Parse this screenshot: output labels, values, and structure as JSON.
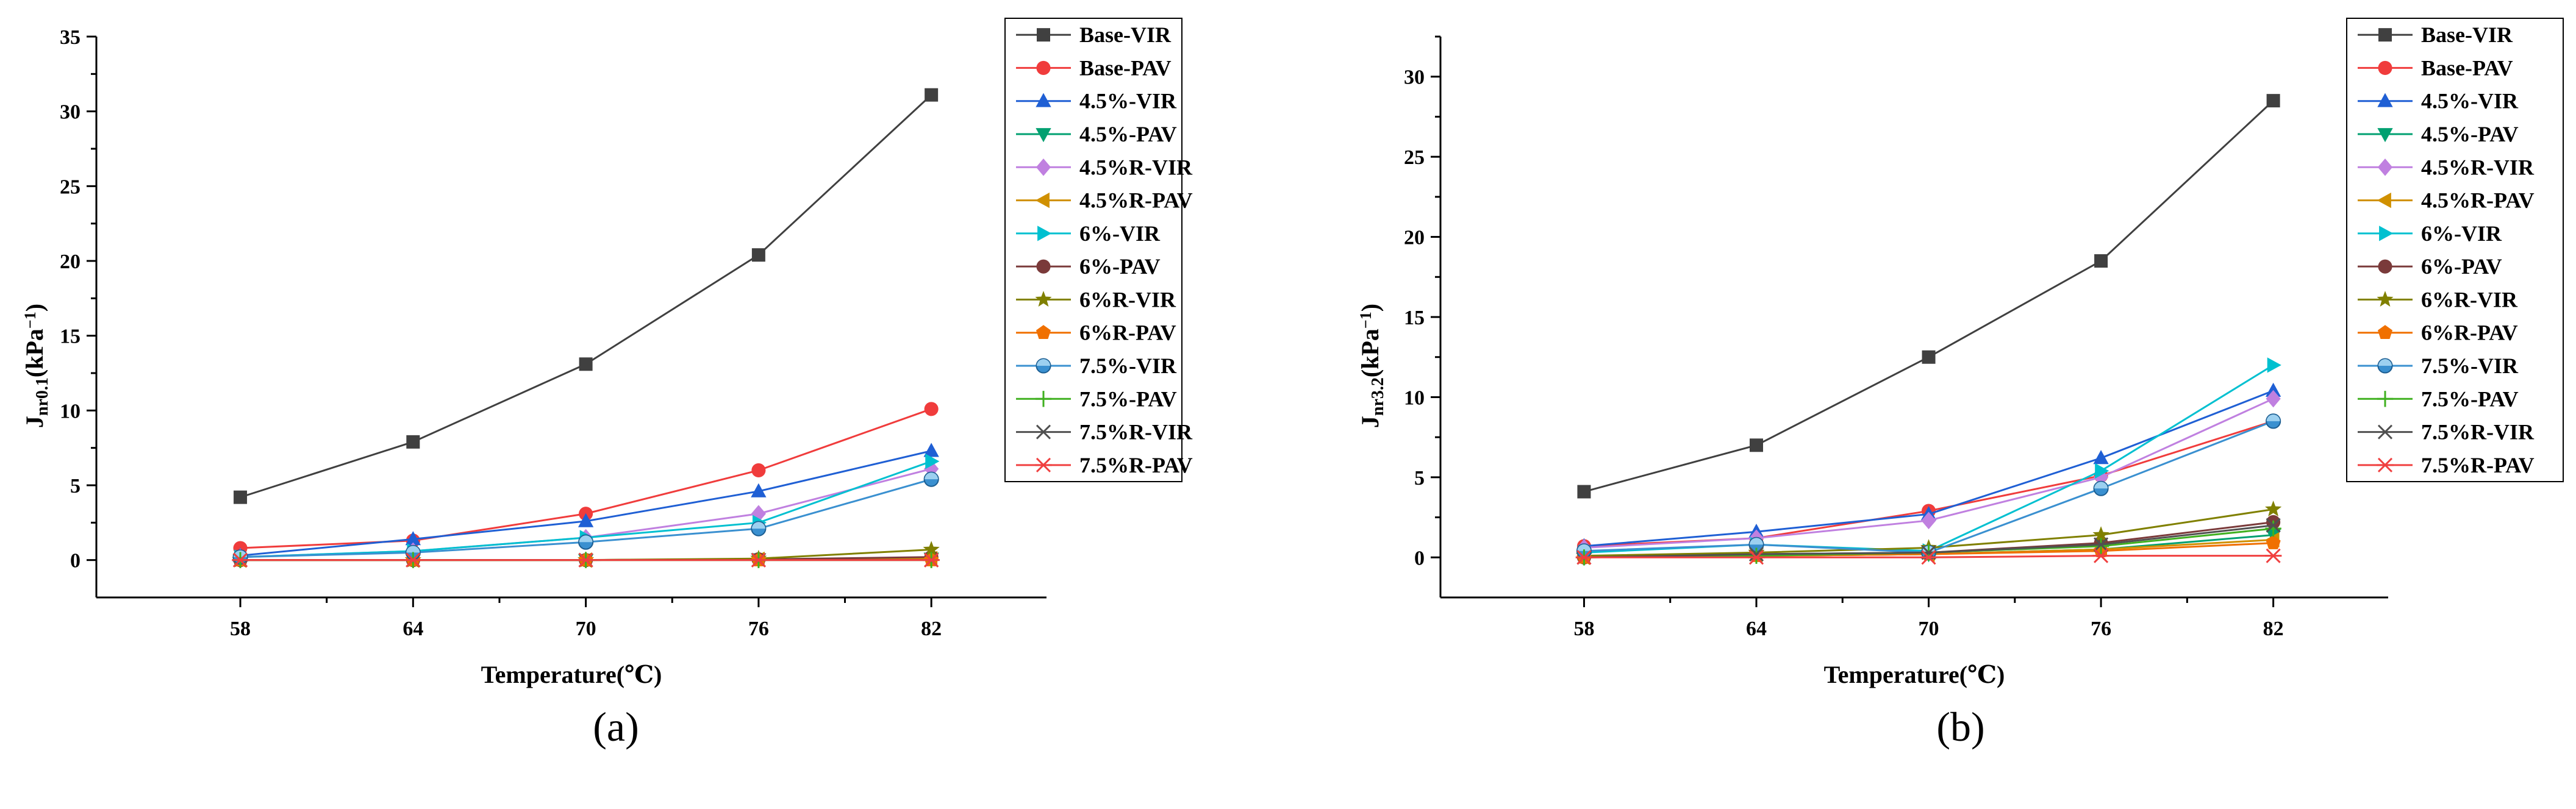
{
  "chart_data": [
    {
      "type": "line",
      "panel_label": "(a)",
      "xlabel": "Temperature(℃)",
      "ylabel_main": "J",
      "ylabel_sub": "nr0.1",
      "ylabel_unit": "(kPa",
      "ylabel_sup": "−1",
      "ylabel_close": ")",
      "x": [
        58,
        64,
        70,
        76,
        82
      ],
      "xlim": [
        53,
        86
      ],
      "ylim": [
        -2.5,
        35
      ],
      "yticks": [
        0,
        5,
        10,
        15,
        20,
        25,
        30,
        35
      ],
      "grid": false,
      "legend_position": "right",
      "series": [
        {
          "name": "Base-VIR",
          "color": "#404040",
          "marker": "square",
          "values": [
            4.2,
            7.9,
            13.1,
            20.4,
            31.1
          ]
        },
        {
          "name": "Base-PAV",
          "color": "#f03c3c",
          "marker": "circle",
          "values": [
            0.8,
            1.3,
            3.1,
            6.0,
            10.1
          ]
        },
        {
          "name": "4.5%-VIR",
          "color": "#1f5fd4",
          "marker": "triangle-up",
          "values": [
            0.3,
            1.4,
            2.6,
            4.6,
            7.3
          ]
        },
        {
          "name": "4.5%-PAV",
          "color": "#00a070",
          "marker": "triangle-down",
          "values": [
            0.0,
            0.0,
            0.0,
            0.05,
            0.1
          ]
        },
        {
          "name": "4.5%R-VIR",
          "color": "#c080e0",
          "marker": "diamond",
          "values": [
            0.2,
            0.6,
            1.5,
            3.1,
            6.1
          ]
        },
        {
          "name": "4.5%R-PAV",
          "color": "#d09000",
          "marker": "triangle-left",
          "values": [
            0.0,
            0.0,
            0.0,
            0.05,
            0.1
          ]
        },
        {
          "name": "6%-VIR",
          "color": "#00c0d0",
          "marker": "triangle-right",
          "values": [
            0.2,
            0.6,
            1.5,
            2.5,
            6.6
          ]
        },
        {
          "name": "6%-PAV",
          "color": "#7a3a3a",
          "marker": "circle",
          "values": [
            0.0,
            0.0,
            0.0,
            0.05,
            0.2
          ]
        },
        {
          "name": "6%R-VIR",
          "color": "#808000",
          "marker": "star",
          "values": [
            0.0,
            0.0,
            0.0,
            0.1,
            0.7
          ]
        },
        {
          "name": "6%R-PAV",
          "color": "#f07000",
          "marker": "pentagon",
          "values": [
            0.0,
            0.0,
            0.0,
            0.0,
            0.0
          ]
        },
        {
          "name": "7.5%-VIR",
          "color": "#3a90d0",
          "marker": "circle-half",
          "values": [
            0.2,
            0.5,
            1.2,
            2.1,
            5.4
          ]
        },
        {
          "name": "7.5%-PAV",
          "color": "#40b020",
          "marker": "plus",
          "values": [
            0.0,
            0.0,
            0.0,
            0.0,
            0.0
          ]
        },
        {
          "name": "7.5%R-VIR",
          "color": "#505050",
          "marker": "x",
          "values": [
            0.0,
            0.0,
            0.0,
            0.0,
            0.0
          ]
        },
        {
          "name": "7.5%R-PAV",
          "color": "#f04040",
          "marker": "asterisk",
          "values": [
            0.0,
            0.0,
            0.0,
            0.0,
            0.0
          ]
        }
      ]
    },
    {
      "type": "line",
      "panel_label": "(b)",
      "xlabel": "Temperature(℃)",
      "ylabel_main": "J",
      "ylabel_sub": "nr3.2",
      "ylabel_unit": "(kPa",
      "ylabel_sup": "−1",
      "ylabel_close": ")",
      "x": [
        58,
        64,
        70,
        76,
        82
      ],
      "xlim": [
        53,
        86
      ],
      "ylim": [
        -2.5,
        32.5
      ],
      "yticks": [
        0,
        5,
        10,
        15,
        20,
        25,
        30
      ],
      "grid": false,
      "legend_position": "right",
      "series": [
        {
          "name": "Base-VIR",
          "color": "#404040",
          "marker": "square",
          "values": [
            4.1,
            7.0,
            12.5,
            18.5,
            28.5
          ]
        },
        {
          "name": "Base-PAV",
          "color": "#f03c3c",
          "marker": "circle",
          "values": [
            0.7,
            1.2,
            2.9,
            5.1,
            8.5
          ]
        },
        {
          "name": "4.5%-VIR",
          "color": "#1f5fd4",
          "marker": "triangle-up",
          "values": [
            0.7,
            1.6,
            2.7,
            6.2,
            10.4
          ]
        },
        {
          "name": "4.5%-PAV",
          "color": "#00a070",
          "marker": "triangle-down",
          "values": [
            0.0,
            0.1,
            0.2,
            0.5,
            1.4
          ]
        },
        {
          "name": "4.5%R-VIR",
          "color": "#c080e0",
          "marker": "diamond",
          "values": [
            0.6,
            1.2,
            2.3,
            5.0,
            9.9
          ]
        },
        {
          "name": "4.5%R-PAV",
          "color": "#d09000",
          "marker": "triangle-left",
          "values": [
            0.0,
            0.1,
            0.2,
            0.5,
            1.1
          ]
        },
        {
          "name": "6%-VIR",
          "color": "#00c0d0",
          "marker": "triangle-right",
          "values": [
            0.3,
            0.8,
            0.4,
            5.4,
            12.0
          ]
        },
        {
          "name": "6%-PAV",
          "color": "#7a3a3a",
          "marker": "circle",
          "values": [
            0.0,
            0.2,
            0.3,
            0.9,
            2.2
          ]
        },
        {
          "name": "6%R-VIR",
          "color": "#808000",
          "marker": "star",
          "values": [
            0.1,
            0.3,
            0.6,
            1.4,
            3.0
          ]
        },
        {
          "name": "6%R-PAV",
          "color": "#f07000",
          "marker": "pentagon",
          "values": [
            0.0,
            0.1,
            0.2,
            0.4,
            0.9
          ]
        },
        {
          "name": "7.5%-VIR",
          "color": "#3a90d0",
          "marker": "circle-half",
          "values": [
            0.4,
            0.8,
            0.3,
            4.3,
            8.5
          ]
        },
        {
          "name": "7.5%-PAV",
          "color": "#40b020",
          "marker": "plus",
          "values": [
            0.0,
            0.1,
            0.3,
            0.7,
            1.8
          ]
        },
        {
          "name": "7.5%R-VIR",
          "color": "#505050",
          "marker": "x",
          "values": [
            0.0,
            0.2,
            0.3,
            0.8,
            2.0
          ]
        },
        {
          "name": "7.5%R-PAV",
          "color": "#f04040",
          "marker": "asterisk",
          "values": [
            0.0,
            0.0,
            0.0,
            0.1,
            0.1
          ]
        }
      ]
    }
  ]
}
